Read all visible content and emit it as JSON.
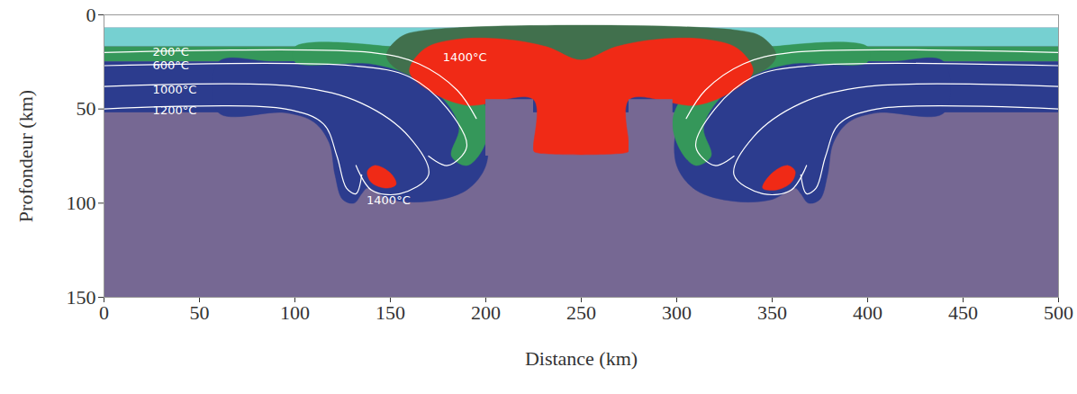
{
  "chart_data": {
    "type": "cross_section",
    "xlabel": "Distance (km)",
    "ylabel": "Profondeur (km)",
    "xlim": [
      0,
      500
    ],
    "ylim": [
      0,
      150
    ],
    "xticks": [
      0,
      50,
      100,
      150,
      200,
      250,
      300,
      350,
      400,
      450,
      500
    ],
    "yticks": [
      0,
      50,
      100,
      150
    ],
    "regions": [
      {
        "color": "#766893",
        "x1": 0,
        "x2": 500,
        "y1": 7,
        "y2": 150
      },
      {
        "color": "#76d0d1",
        "x1": 0,
        "x2": 500,
        "y1": 7,
        "y2": 17
      },
      {
        "color": "#35975a",
        "x1": 0,
        "x2": 500,
        "y1": 17,
        "y2": 25
      },
      {
        "color": "#2c3c8e",
        "x1": 0,
        "x2": 500,
        "y1": 25,
        "y2": 52
      },
      {
        "color": "#2c3c8e",
        "x": [
          90,
          150,
          175,
          192,
          200,
          200,
          190,
          170,
          150,
          138,
          135,
          131,
          125,
          121,
          118,
          110,
          95,
          60,
          60
        ],
        "y": [
          25,
          25,
          32,
          45,
          60,
          80,
          93,
          99,
          98,
          92,
          95,
          100,
          98,
          85,
          68,
          57,
          52,
          52,
          25
        ]
      },
      {
        "color": "#2c3c8e",
        "x": [
          410,
          350,
          325,
          308,
          300,
          300,
          310,
          330,
          350,
          362,
          365,
          369,
          375,
          379,
          382,
          390,
          405,
          440,
          440
        ],
        "y": [
          25,
          25,
          32,
          45,
          60,
          80,
          93,
          99,
          98,
          92,
          95,
          100,
          98,
          85,
          68,
          57,
          52,
          52,
          25
        ]
      },
      {
        "color": "#35975a",
        "x": [
          100,
          150,
          170,
          190,
          202,
          198,
          190,
          182,
          186,
          178,
          160,
          140,
          100
        ],
        "y": [
          17,
          17,
          22,
          35,
          55,
          72,
          80,
          75,
          60,
          45,
          32,
          26,
          25
        ]
      },
      {
        "color": "#35975a",
        "x": [
          400,
          350,
          330,
          310,
          298,
          302,
          310,
          318,
          314,
          322,
          340,
          360,
          400
        ],
        "y": [
          17,
          17,
          22,
          35,
          55,
          72,
          80,
          75,
          60,
          45,
          32,
          26,
          25
        ]
      },
      {
        "color": "#41704d",
        "x": [
          148,
          155,
          170,
          330,
          345,
          352,
          340,
          160
        ],
        "y": [
          22,
          12,
          8,
          8,
          12,
          22,
          32,
          32
        ]
      },
      {
        "color": "#f02a16",
        "x": [
          160,
          168,
          185,
          210,
          232,
          250,
          268,
          290,
          315,
          332,
          340,
          330,
          310,
          275,
          275,
          274,
          226,
          225,
          225,
          190,
          170
        ],
        "y": [
          30,
          18,
          13,
          13,
          17,
          24,
          17,
          13,
          13,
          18,
          30,
          40,
          48,
          45,
          72,
          73,
          73,
          72,
          45,
          48,
          40
        ]
      },
      {
        "color": "#766893",
        "x1": 200,
        "x2": 225,
        "y1": 45,
        "y2": 75
      },
      {
        "color": "#766893",
        "x1": 275,
        "x2": 298,
        "y1": 45,
        "y2": 75
      },
      {
        "color": "#f02a16",
        "x": [
          138,
          142,
          150,
          153,
          148,
          140
        ],
        "y": [
          83,
          80,
          84,
          90,
          92,
          89
        ]
      },
      {
        "color": "#f02a16",
        "x": [
          362,
          358,
          350,
          345,
          352,
          360
        ],
        "y": [
          83,
          80,
          84,
          92,
          93,
          89
        ]
      }
    ],
    "isotherms": [
      {
        "label": "200°C",
        "label_x": 35,
        "label_y": 19.6,
        "lines": [
          {
            "x": [
              0,
              140,
              165,
              185,
              195
            ],
            "y": [
              20,
              20,
              26,
              40,
              55
            ]
          },
          {
            "x": [
              500,
              360,
              335,
              315,
              305
            ],
            "y": [
              20,
              20,
              26,
              40,
              55
            ]
          }
        ]
      },
      {
        "label": "600°C",
        "label_x": 35,
        "label_y": 26.8,
        "lines": [
          {
            "x": [
              0,
              130,
              160,
              180,
              190,
              180,
              170
            ],
            "y": [
              27,
              27,
              33,
              50,
              70,
              80,
              75
            ]
          },
          {
            "x": [
              500,
              370,
              340,
              320,
              310,
              320,
              330
            ],
            "y": [
              27,
              27,
              33,
              50,
              70,
              80,
              75
            ]
          }
        ]
      },
      {
        "label": "1000°C",
        "label_x": 37,
        "label_y": 40,
        "lines": [
          {
            "x": [
              0,
              100,
              135,
              160,
              170,
              155,
              140,
              132
            ],
            "y": [
              38,
              38,
              47,
              65,
              85,
              95,
              93,
              80
            ]
          },
          {
            "x": [
              500,
              400,
              365,
              340,
              330,
              345,
              360,
              368
            ],
            "y": [
              38,
              38,
              47,
              65,
              85,
              95,
              93,
              80
            ]
          }
        ]
      },
      {
        "label": "1200°C",
        "label_x": 37,
        "label_y": 51,
        "lines": [
          {
            "x": [
              0,
              95,
              115,
              122,
              127,
              132,
              135
            ],
            "y": [
              50,
              50,
              58,
              75,
              92,
              95,
              85
            ]
          },
          {
            "x": [
              500,
              405,
              385,
              378,
              373,
              368,
              365
            ],
            "y": [
              50,
              50,
              58,
              75,
              92,
              95,
              85
            ]
          }
        ]
      }
    ],
    "annotations": [
      {
        "text": "1400°C",
        "x": 189,
        "y": 22.5
      },
      {
        "text": "1400°C",
        "x": 149,
        "y": 98.5
      }
    ]
  }
}
